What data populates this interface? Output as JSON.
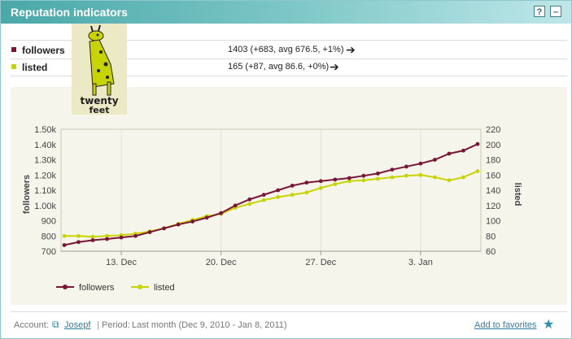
{
  "header": {
    "title": "Reputation indicators",
    "help_label": "?",
    "minimize_label": "–"
  },
  "rows": [
    {
      "label": "followers",
      "value": "1403  (+683, avg 676.5, +1%)",
      "color": "#7a1535"
    },
    {
      "label": "listed",
      "value": "165  (+87, avg 86.6, +0%)",
      "color": "#c8d400"
    }
  ],
  "logo": {
    "text_top": "twenty",
    "text_bottom": "feet"
  },
  "chart_data": {
    "type": "line",
    "x": [
      "Dec 9",
      "Dec 10",
      "Dec 11",
      "Dec 12",
      "Dec 13",
      "Dec 14",
      "Dec 15",
      "Dec 16",
      "Dec 17",
      "Dec 18",
      "Dec 19",
      "Dec 20",
      "Dec 21",
      "Dec 22",
      "Dec 23",
      "Dec 24",
      "Dec 25",
      "Dec 26",
      "Dec 27",
      "Dec 28",
      "Dec 29",
      "Dec 30",
      "Dec 31",
      "Jan 1",
      "Jan 2",
      "Jan 3",
      "Jan 4",
      "Jan 5",
      "Jan 6",
      "Jan 7"
    ],
    "x_tick_labels": [
      "13. Dec",
      "20. Dec",
      "27. Dec",
      "3. Jan"
    ],
    "x_tick_dates": [
      "Dec 13",
      "Dec 20",
      "Dec 27",
      "Jan 3"
    ],
    "ylabel_left": "followers",
    "ylabel_right": "listed",
    "y_left_ticks": [
      "700",
      "800",
      "900",
      "1.00k",
      "1.10k",
      "1.20k",
      "1.30k",
      "1.40k",
      "1.50k"
    ],
    "y_right_ticks": [
      "60",
      "80",
      "100",
      "120",
      "140",
      "160",
      "180",
      "200",
      "220"
    ],
    "y_left_range": [
      700,
      1500
    ],
    "y_right_range": [
      60,
      220
    ],
    "series": [
      {
        "name": "followers",
        "axis": "left",
        "color": "#7a1535",
        "values": [
          740,
          760,
          772,
          780,
          790,
          800,
          825,
          850,
          875,
          895,
          920,
          950,
          1000,
          1040,
          1070,
          1100,
          1130,
          1150,
          1160,
          1170,
          1180,
          1195,
          1210,
          1235,
          1255,
          1275,
          1300,
          1340,
          1360,
          1403
        ]
      },
      {
        "name": "listed",
        "axis": "right",
        "color": "#c8d400",
        "values": [
          80,
          80,
          79,
          80,
          81,
          83,
          86,
          90,
          96,
          101,
          106,
          109,
          117,
          122,
          127,
          131,
          134,
          137,
          143,
          148,
          152,
          153,
          155,
          157,
          159,
          160,
          157,
          153,
          157,
          165
        ]
      }
    ],
    "legend_position": "bottom-left"
  },
  "footer": {
    "account_label": "Account:",
    "account_name": "Josepf",
    "period_label": "Period:",
    "period_value": "Last month (Dec 9, 2010 - Jan 8, 2011)",
    "favorites_label": "Add to favorites"
  }
}
